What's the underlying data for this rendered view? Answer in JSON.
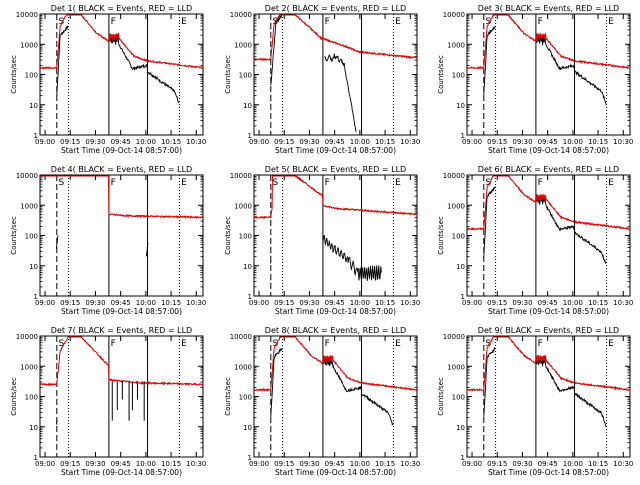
{
  "common": {
    "xlabel": "Start Time (09-Oct-14 08:57:00)",
    "ylabel": "Counts/sec",
    "xticks": [
      "09:00",
      "09:15",
      "09:30",
      "09:45",
      "10:00",
      "10:15",
      "10:30"
    ],
    "yticks": [
      "1",
      "10",
      "100",
      "1000",
      "10000"
    ],
    "xrange_minutes": [
      0,
      97
    ],
    "ylim": [
      1,
      10000
    ],
    "yscale": "log",
    "colors": {
      "events": "#000000",
      "lld": "#dd0000"
    },
    "markers": {
      "dashed": [
        10
      ],
      "solid": [
        41,
        64
      ],
      "dotted": [
        17,
        83
      ]
    },
    "marker_labels": [
      "S",
      "F",
      "E"
    ]
  },
  "chart_data": [
    {
      "type": "line",
      "title": "Det 1( BLACK = Events, RED = LLD",
      "profile": "full"
    },
    {
      "type": "line",
      "title": "Det 2( BLACK = Events, RED = LLD",
      "profile": "det2"
    },
    {
      "type": "line",
      "title": "Det 3( BLACK = Events, RED = LLD",
      "profile": "full"
    },
    {
      "type": "line",
      "title": "Det 4( BLACK = Events, RED = LLD",
      "profile": "det4"
    },
    {
      "type": "line",
      "title": "Det 5( BLACK = Events, RED = LLD",
      "profile": "det5"
    },
    {
      "type": "line",
      "title": "Det 6( BLACK = Events, RED = LLD",
      "profile": "full"
    },
    {
      "type": "line",
      "title": "Det 7( BLACK = Events, RED = LLD",
      "profile": "det7"
    },
    {
      "type": "line",
      "title": "Det 8( BLACK = Events, RED = LLD",
      "profile": "full"
    },
    {
      "type": "line",
      "title": "Det 9( BLACK = Events, RED = LLD",
      "profile": "full"
    }
  ]
}
